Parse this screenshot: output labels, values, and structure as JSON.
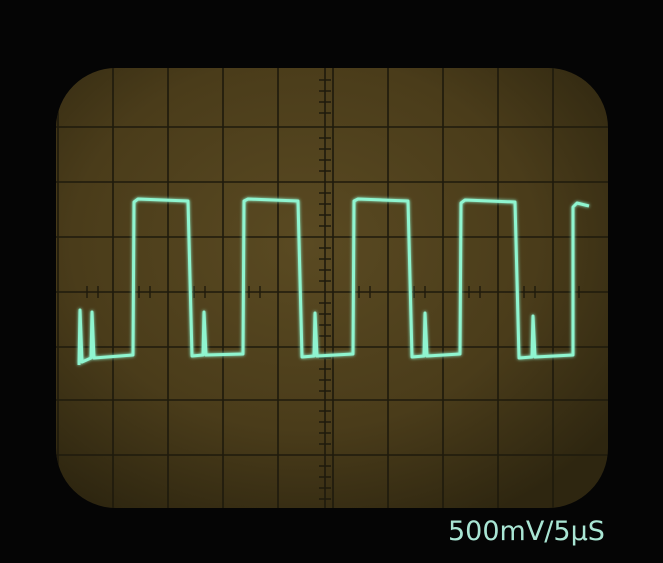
{
  "caption": "500mV/5μS"
}
